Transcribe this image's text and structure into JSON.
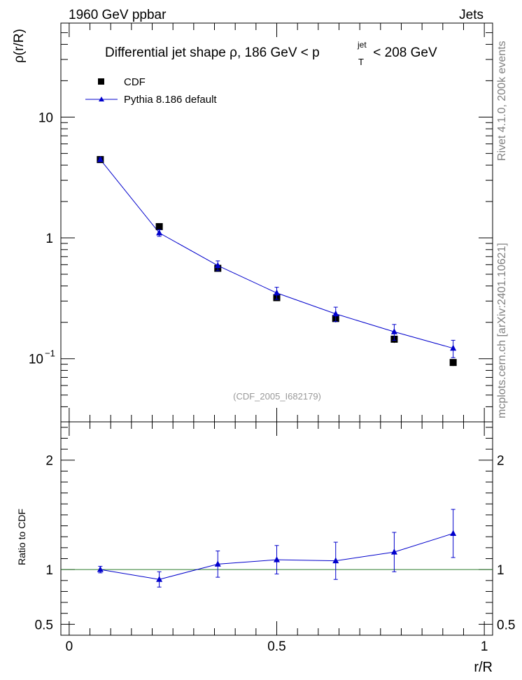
{
  "header": {
    "left": "1960 GeV ppbar",
    "right": "Jets"
  },
  "side": {
    "top": "Rivet 4.1.0,  200k events",
    "bottom": "mcplots.cern.ch [arXiv:2401.10621]"
  },
  "colors": {
    "cdf": "#000000",
    "pythia": "#0000cc",
    "ratio_line": "#2e7d2e",
    "watermark": "#999999",
    "side_text": "#808080"
  },
  "chart_data": [
    {
      "type": "scatter",
      "title": {
        "main": "Differential jet shape  ρ, 186 GeV < p",
        "sub": "T",
        "sup": "jet",
        "tail": " < 208 GeV"
      },
      "ylabel": "ρ(r/R)",
      "yscale": "log",
      "ylim": [
        0.03,
        60
      ],
      "xlim": [
        -0.02,
        1.02
      ],
      "yticklabels": [
        {
          "value": 0.1,
          "base": "10",
          "exp": "−1"
        },
        {
          "value": 1,
          "base": "1",
          "exp": ""
        },
        {
          "value": 10,
          "base": "10",
          "exp": ""
        }
      ],
      "watermark": "(CDF_2005_I682179)",
      "legend": [
        "CDF",
        "Pythia 8.186 default"
      ],
      "x": [
        0.075,
        0.217,
        0.358,
        0.5,
        0.642,
        0.783,
        0.925
      ],
      "series": [
        {
          "name": "CDF",
          "marker": "square",
          "values": [
            4.45,
            1.24,
            0.56,
            0.32,
            0.215,
            0.145,
            0.093
          ],
          "err": [
            0.12,
            0.04,
            0.025,
            0.015,
            0.015,
            0.01,
            0.006
          ]
        },
        {
          "name": "Pythia 8.186 default",
          "marker": "triangle",
          "values": [
            4.45,
            1.1,
            0.59,
            0.35,
            0.235,
            0.167,
            0.122
          ],
          "err": [
            0.15,
            0.07,
            0.055,
            0.04,
            0.032,
            0.025,
            0.02
          ]
        }
      ]
    },
    {
      "type": "line",
      "ylabel": "Ratio to CDF",
      "xlabel": "r/R",
      "ylim": [
        0.4,
        2.35
      ],
      "yticks": [
        0.5,
        1,
        2
      ],
      "yticklabels": [
        "0.5",
        "1",
        "2"
      ],
      "xticks": [
        0,
        0.5,
        1
      ],
      "xticklabels": [
        "0",
        "0.5",
        "1"
      ],
      "x": [
        0.075,
        0.217,
        0.358,
        0.5,
        0.642,
        0.783,
        0.925
      ],
      "series": [
        {
          "name": "Pythia 8.186 default",
          "values": [
            1.0,
            0.91,
            1.05,
            1.09,
            1.08,
            1.16,
            1.33
          ],
          "err": [
            0.03,
            0.07,
            0.12,
            0.13,
            0.17,
            0.18,
            0.22
          ]
        }
      ]
    }
  ]
}
